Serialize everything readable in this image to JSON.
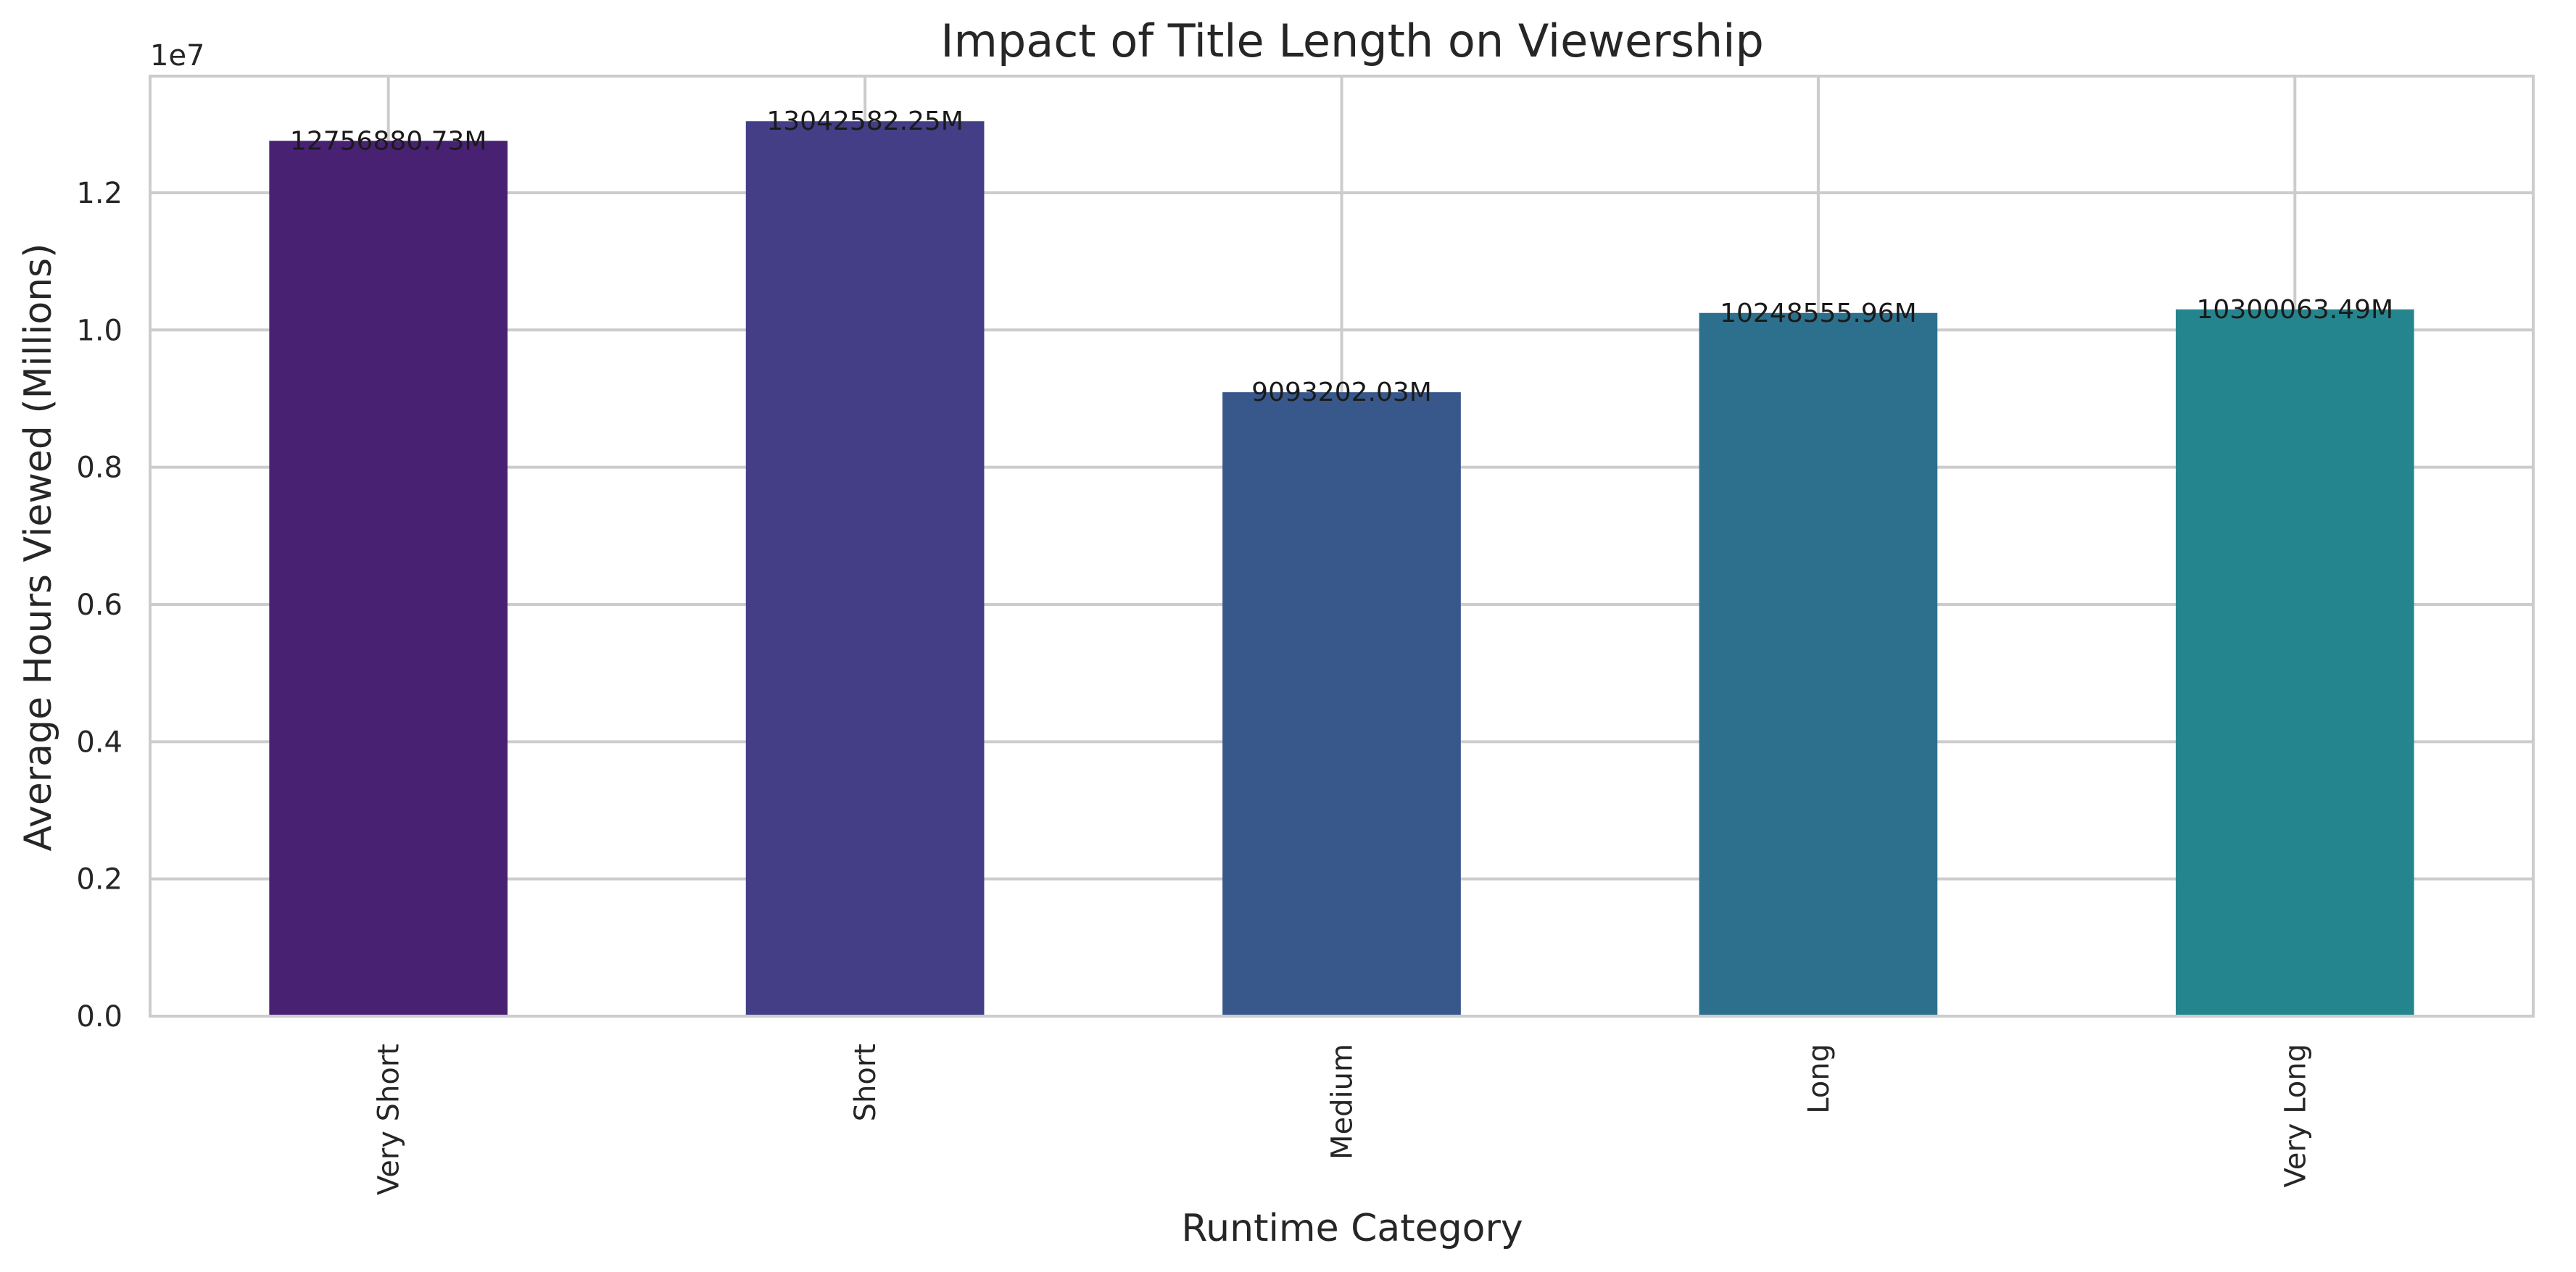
{
  "chart_data": {
    "type": "bar",
    "title": "Impact of Title Length on Viewership",
    "xlabel": "Runtime Category",
    "ylabel": "Average Hours Viewed (Millions)",
    "y_offset_text": "1e7",
    "categories": [
      "Very Short",
      "Short",
      "Medium",
      "Long",
      "Very Long"
    ],
    "values": [
      12756880.73,
      13042582.25,
      9093202.03,
      10248555.96,
      10300063.49
    ],
    "data_labels": [
      "12756880.73M",
      "13042582.25M",
      "9093202.03M",
      "10248555.96M",
      "10300063.49M"
    ],
    "colors": [
      "#482173",
      "#433e85",
      "#38588c",
      "#2d708e",
      "#25858e"
    ],
    "ylim": [
      0,
      13700000
    ],
    "y_ticks": [
      0,
      2000000,
      4000000,
      6000000,
      8000000,
      10000000,
      12000000
    ],
    "y_tick_labels": [
      "0.0",
      "0.2",
      "0.4",
      "0.6",
      "0.8",
      "1.0",
      "1.2"
    ],
    "grid": true,
    "legend": "none"
  }
}
